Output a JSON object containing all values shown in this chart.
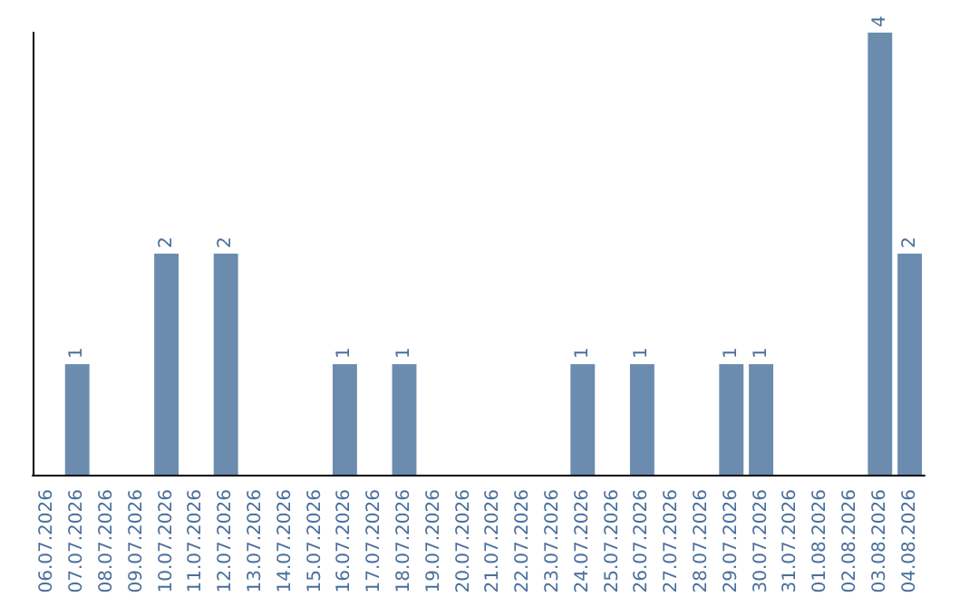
{
  "chart_data": {
    "type": "bar",
    "categories": [
      "06.07.2026",
      "07.07.2026",
      "08.07.2026",
      "09.07.2026",
      "10.07.2026",
      "11.07.2026",
      "12.07.2026",
      "13.07.2026",
      "14.07.2026",
      "15.07.2026",
      "16.07.2026",
      "17.07.2026",
      "18.07.2026",
      "19.07.2026",
      "20.07.2026",
      "21.07.2026",
      "22.07.2026",
      "23.07.2026",
      "24.07.2026",
      "25.07.2026",
      "26.07.2026",
      "27.07.2026",
      "28.07.2026",
      "29.07.2026",
      "30.07.2026",
      "31.07.2026",
      "01.08.2026",
      "02.08.2026",
      "03.08.2026",
      "04.08.2026"
    ],
    "values": [
      0,
      1,
      0,
      0,
      2,
      0,
      2,
      0,
      0,
      0,
      1,
      0,
      1,
      0,
      0,
      0,
      0,
      0,
      1,
      0,
      1,
      0,
      0,
      1,
      1,
      0,
      0,
      0,
      4,
      2
    ],
    "value_labels": [
      null,
      "1",
      null,
      null,
      "2",
      null,
      "2",
      null,
      null,
      null,
      "1",
      null,
      "1",
      null,
      null,
      null,
      null,
      null,
      "1",
      null,
      "1",
      null,
      null,
      "1",
      "1",
      null,
      null,
      null,
      "4",
      "2"
    ],
    "color": "#6b8cae",
    "tick_labels": "x"
  }
}
